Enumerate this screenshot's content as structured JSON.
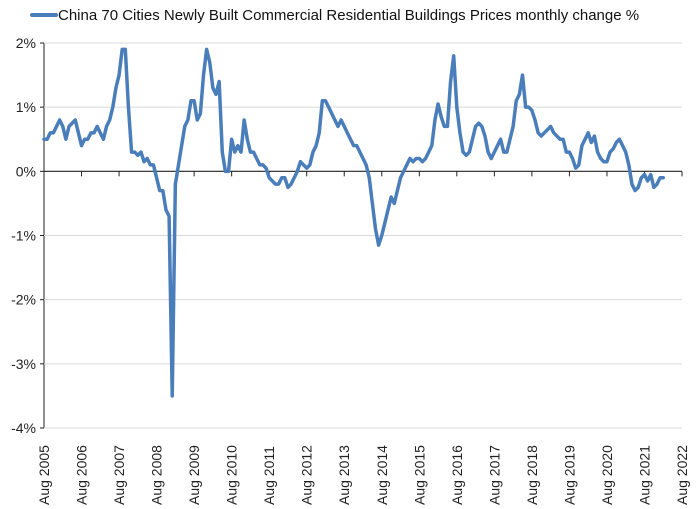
{
  "colors": {
    "line": "#4a7ebb",
    "axis": "#222222",
    "grid": "#d9d9d9",
    "text": "#222222"
  },
  "chart_data": {
    "type": "line",
    "title": "",
    "legend": {
      "position": "top-left"
    },
    "xlabel": "",
    "ylabel": "",
    "ylim": [
      -4,
      2
    ],
    "grid": {
      "y": true,
      "x": false
    },
    "yticks": [
      2,
      1,
      0,
      -1,
      -2,
      -3,
      -4
    ],
    "ytick_labels": [
      "2%",
      "1%",
      "0%",
      "-1%",
      "-2%",
      "-3%",
      "-4%"
    ],
    "xlim": [
      "2005-08",
      "2022-08"
    ],
    "xtick_labels": [
      "Aug 2005",
      "Aug 2006",
      "Aug 2007",
      "Aug 2008",
      "Aug 2009",
      "Aug 2010",
      "Aug 2011",
      "Aug 2012",
      "Aug 2013",
      "Aug 2014",
      "Aug 2015",
      "Aug 2016",
      "Aug 2017",
      "Aug 2018",
      "Aug 2019",
      "Aug 2020",
      "Aug 2021",
      "Aug 2022"
    ],
    "series": [
      {
        "name": "China 70 Cities Newly Built Commercial Residential Buildings Prices monthly change %",
        "unit": "%",
        "start": "2005-08",
        "frequency": "monthly",
        "values": [
          0.5,
          0.5,
          0.6,
          0.6,
          0.7,
          0.8,
          0.7,
          0.5,
          0.7,
          0.75,
          0.8,
          0.6,
          0.4,
          0.5,
          0.5,
          0.6,
          0.6,
          0.7,
          0.6,
          0.5,
          0.7,
          0.8,
          1.0,
          1.3,
          1.5,
          1.9,
          1.9,
          1.0,
          0.3,
          0.3,
          0.25,
          0.3,
          0.15,
          0.2,
          0.1,
          0.1,
          -0.1,
          -0.3,
          -0.3,
          -0.6,
          -0.7,
          -3.5,
          -0.2,
          0.1,
          0.4,
          0.7,
          0.8,
          1.1,
          1.1,
          0.8,
          0.9,
          1.5,
          1.9,
          1.7,
          1.3,
          1.2,
          1.4,
          0.3,
          0.0,
          0.0,
          0.5,
          0.3,
          0.4,
          0.3,
          0.8,
          0.5,
          0.3,
          0.3,
          0.2,
          0.1,
          0.1,
          0.05,
          -0.1,
          -0.15,
          -0.2,
          -0.2,
          -0.1,
          -0.1,
          -0.25,
          -0.2,
          -0.1,
          0.0,
          0.15,
          0.1,
          0.05,
          0.1,
          0.3,
          0.4,
          0.6,
          1.1,
          1.1,
          1.0,
          0.9,
          0.8,
          0.7,
          0.8,
          0.7,
          0.6,
          0.5,
          0.4,
          0.4,
          0.3,
          0.2,
          0.1,
          -0.1,
          -0.5,
          -0.9,
          -1.15,
          -1.0,
          -0.8,
          -0.6,
          -0.4,
          -0.5,
          -0.3,
          -0.1,
          0.0,
          0.1,
          0.2,
          0.15,
          0.2,
          0.2,
          0.15,
          0.2,
          0.3,
          0.4,
          0.8,
          1.05,
          0.85,
          0.7,
          0.7,
          1.4,
          1.8,
          1.0,
          0.6,
          0.3,
          0.25,
          0.3,
          0.5,
          0.7,
          0.75,
          0.7,
          0.55,
          0.3,
          0.2,
          0.3,
          0.4,
          0.5,
          0.3,
          0.3,
          0.5,
          0.7,
          1.1,
          1.2,
          1.5,
          1.0,
          1.0,
          0.95,
          0.8,
          0.6,
          0.55,
          0.6,
          0.65,
          0.7,
          0.6,
          0.55,
          0.5,
          0.5,
          0.3,
          0.3,
          0.2,
          0.05,
          0.1,
          0.4,
          0.5,
          0.6,
          0.45,
          0.55,
          0.3,
          0.2,
          0.15,
          0.15,
          0.3,
          0.35,
          0.45,
          0.5,
          0.4,
          0.3,
          0.1,
          -0.2,
          -0.3,
          -0.25,
          -0.1,
          -0.05,
          -0.15,
          -0.05,
          -0.25,
          -0.2,
          -0.1,
          -0.1
        ]
      }
    ]
  }
}
